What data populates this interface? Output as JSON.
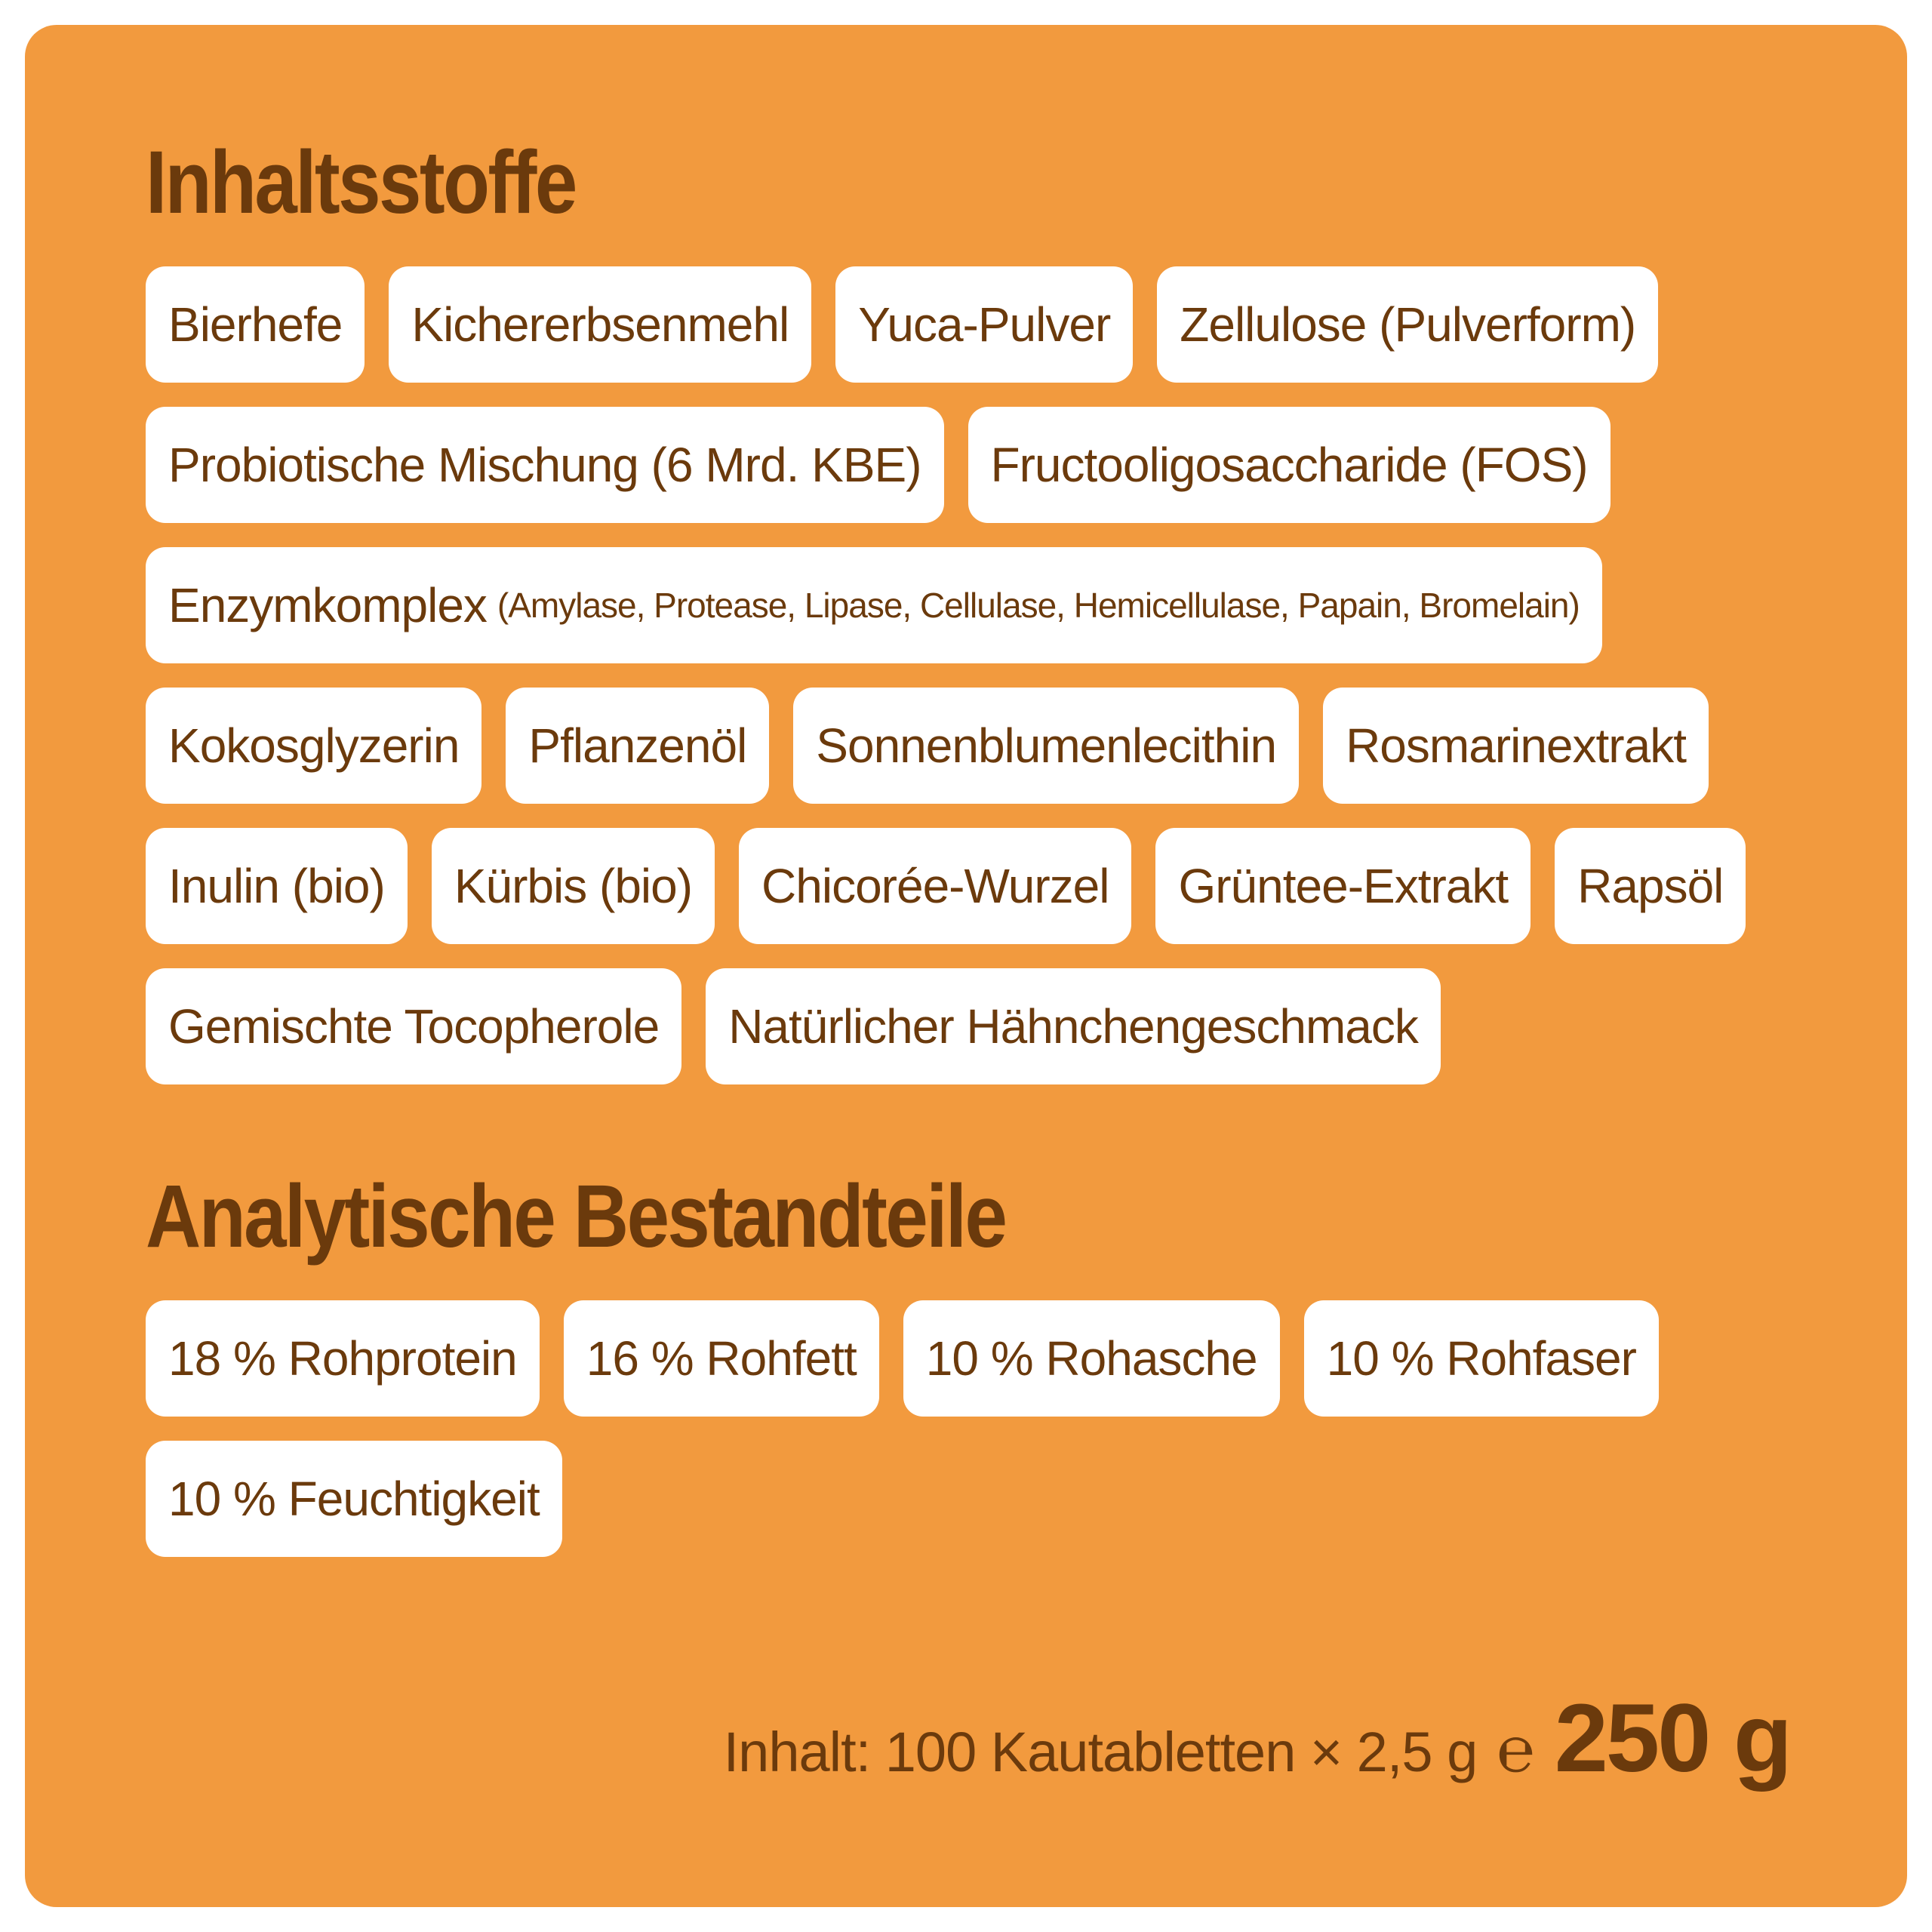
{
  "ingredients": {
    "title": "Inhaltsstoffe",
    "items": [
      {
        "label": "Bierhefe",
        "detail": ""
      },
      {
        "label": "Kichererbsenmehl",
        "detail": ""
      },
      {
        "label": "Yuca-Pulver",
        "detail": ""
      },
      {
        "label": "Zellulose (Pulverform)",
        "detail": ""
      },
      {
        "label": "Probiotische Mischung (6 Mrd. KBE)",
        "detail": ""
      },
      {
        "label": "Fructooligosaccharide (FOS)",
        "detail": ""
      },
      {
        "label": "Enzymkomplex",
        "detail": "(Amylase, Protease, Lipase, Cellulase, Hemicellulase, Papain, Bromelain)"
      },
      {
        "label": "Kokosglyzerin",
        "detail": ""
      },
      {
        "label": "Pflanzenöl",
        "detail": ""
      },
      {
        "label": "Sonnenblumenlecithin",
        "detail": ""
      },
      {
        "label": "Rosmarinextrakt",
        "detail": ""
      },
      {
        "label": "Inulin (bio)",
        "detail": ""
      },
      {
        "label": "Kürbis (bio)",
        "detail": ""
      },
      {
        "label": "Chicorée-Wurzel",
        "detail": ""
      },
      {
        "label": "Grüntee-Extrakt",
        "detail": ""
      },
      {
        "label": "Rapsöl",
        "detail": ""
      },
      {
        "label": "Gemischte Tocopherole",
        "detail": ""
      },
      {
        "label": "Natürlicher Hähnchengeschmack",
        "detail": ""
      }
    ]
  },
  "analytic": {
    "title": "Analytische Bestandteile",
    "items": [
      {
        "label": "18 % Rohprotein"
      },
      {
        "label": "16 % Rohfett"
      },
      {
        "label": "10 % Rohasche"
      },
      {
        "label": "10 % Rohfaser"
      },
      {
        "label": "10 % Feuchtigkeit"
      }
    ]
  },
  "footer": {
    "content_text": "Inhalt: 100 Kautabletten × 2,5 g",
    "estimate_sign": "℮",
    "weight": "250 g"
  },
  "colors": {
    "card_background": "#F29A3E",
    "text_brown": "#6B3A0C",
    "chip_background": "#FFFFFF"
  }
}
